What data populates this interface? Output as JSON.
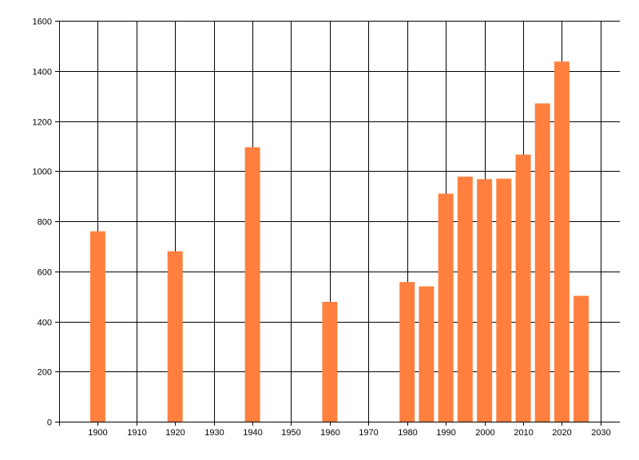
{
  "chart_data": {
    "type": "bar",
    "title": "",
    "xlabel": "",
    "ylabel": "",
    "x": [
      1900,
      1920,
      1940,
      1960,
      1980,
      1985,
      1990,
      1995,
      2000,
      2005,
      2010,
      2015,
      2020,
      2025
    ],
    "values": [
      760,
      680,
      1095,
      478,
      557,
      540,
      910,
      978,
      968,
      970,
      1066,
      1270,
      1437,
      502
    ],
    "xlim": [
      1890,
      2035
    ],
    "ylim": [
      0,
      1600
    ],
    "xticks": [
      "1900",
      "1910",
      "1920",
      "1930",
      "1940",
      "1950",
      "1960",
      "1970",
      "1980",
      "1990",
      "2000",
      "2010",
      "2020",
      "2030"
    ],
    "yticks": [
      "0",
      "200",
      "400",
      "600",
      "800",
      "1000",
      "1200",
      "1400",
      "1600"
    ],
    "bar_color": "#ff7f3f",
    "grid": true,
    "legend": "none"
  }
}
